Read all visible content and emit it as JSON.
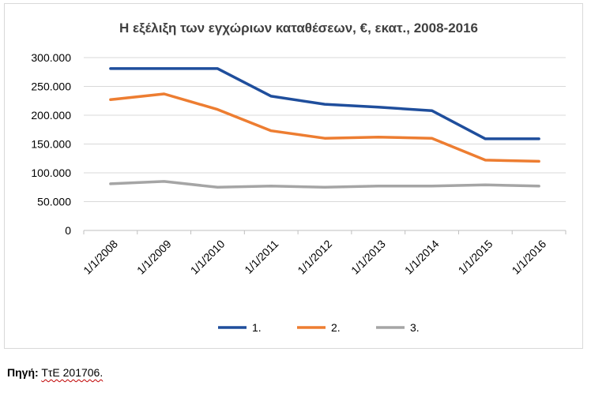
{
  "chart_data": {
    "type": "line",
    "title": "Η εξέλιξη των εγχώριων καταθέσεων, €, εκατ., 2008-2016",
    "xlabel": "",
    "ylabel": "",
    "categories": [
      "1/1/2008",
      "1/1/2009",
      "1/1/2010",
      "1/1/2011",
      "1/1/2012",
      "1/1/2013",
      "1/1/2014",
      "1/1/2015",
      "1/1/2016"
    ],
    "ylim": [
      0,
      300000
    ],
    "yticks": [
      0,
      50000,
      100000,
      150000,
      200000,
      250000,
      300000
    ],
    "ytick_labels": [
      "0",
      "50.000",
      "100.000",
      "150.000",
      "200.000",
      "250.000",
      "300.000"
    ],
    "grid": true,
    "legend_position": "bottom",
    "series": [
      {
        "name": "1.",
        "color": "#1f4e9c",
        "values": [
          281000,
          281000,
          281000,
          233000,
          219000,
          214000,
          208000,
          159000,
          159000
        ]
      },
      {
        "name": "2.",
        "color": "#ed7d31",
        "values": [
          227000,
          237000,
          210000,
          173000,
          160000,
          162000,
          160000,
          122000,
          120000
        ]
      },
      {
        "name": "3.",
        "color": "#a5a5a5",
        "values": [
          81000,
          85000,
          75000,
          77000,
          75000,
          77000,
          77000,
          79000,
          77000
        ]
      }
    ]
  },
  "source": {
    "label": "Πηγή:",
    "text": "ΤτΕ 201706."
  }
}
